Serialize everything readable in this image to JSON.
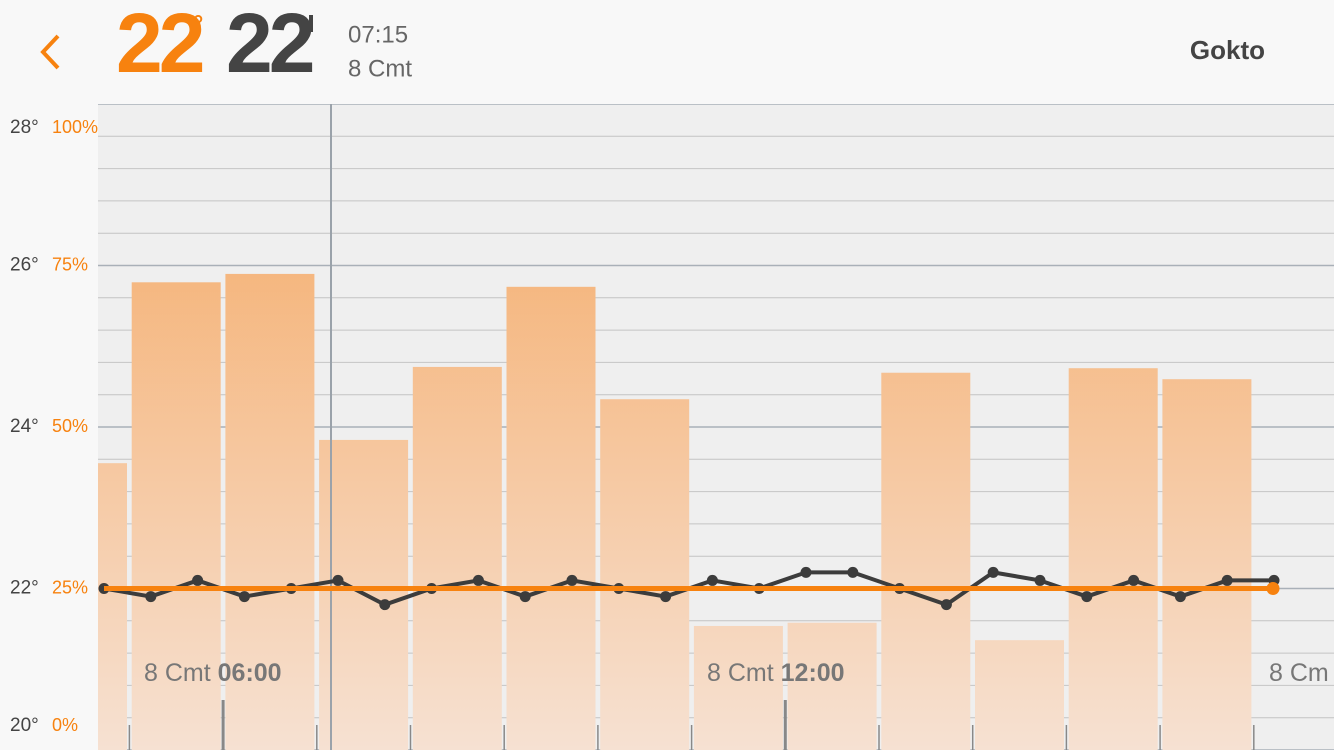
{
  "header": {
    "set_temp": "22",
    "set_unit": "°",
    "current_temp": "22",
    "time": "07:15",
    "date": "8 Cmt",
    "title": "Gokto"
  },
  "chart_data": {
    "type": "bar",
    "series": [
      {
        "name": "humidity",
        "type": "bar",
        "axis": "y2",
        "color": "#f5b070",
        "values": [
          44.4,
          72.4,
          73.7,
          48,
          59.3,
          71.7,
          54.3,
          19.2,
          19.7,
          58.4,
          17,
          59.1,
          57.4
        ]
      },
      {
        "name": "temperature",
        "type": "line",
        "color": "#3c3c3c",
        "values": [
          22,
          21.9,
          22.1,
          21.9,
          22,
          22.1,
          21.8,
          22,
          22.1,
          21.9,
          22.1,
          22,
          21.9,
          22.1,
          22,
          22.2,
          22.2,
          22,
          21.8,
          22.2,
          22.1,
          21.9,
          22.1,
          21.9,
          22.1,
          22.1
        ]
      }
    ],
    "setpoint": 22,
    "setpoint_color": "#f7820f",
    "ylim": [
      20,
      28
    ],
    "yticks": [
      {
        "value": 20,
        "label": "20°"
      },
      {
        "value": 22,
        "label": "22°"
      },
      {
        "value": 24,
        "label": "24°"
      },
      {
        "value": 26,
        "label": "26°"
      },
      {
        "value": 28,
        "label": "28°"
      }
    ],
    "y2lim": [
      0,
      100
    ],
    "y2ticks": [
      {
        "value": 0,
        "label": "0%"
      },
      {
        "value": 25,
        "label": "25%"
      },
      {
        "value": 50,
        "label": "50%"
      },
      {
        "value": 75,
        "label": "75%"
      },
      {
        "value": 100,
        "label": "100%"
      }
    ],
    "time_labels": [
      {
        "date": "8 Cmt",
        "time": "06:00"
      },
      {
        "date": "8 Cmt",
        "time": "12:00"
      },
      {
        "date": "8 Cm"
      }
    ],
    "grid": true
  }
}
